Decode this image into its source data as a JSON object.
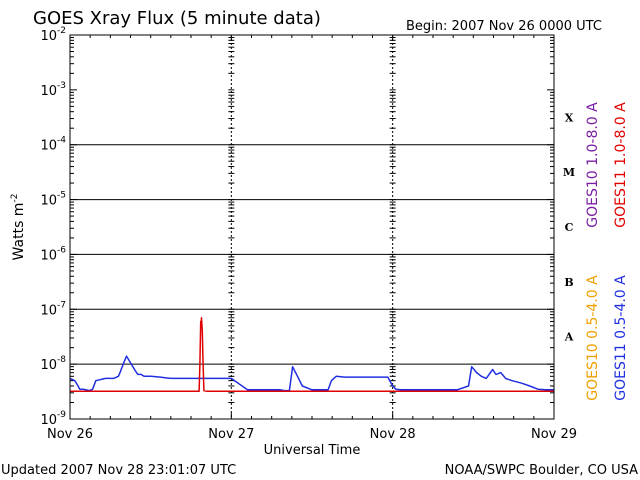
{
  "chart_data": {
    "type": "line",
    "title": "GOES Xray Flux (5 minute data)",
    "begin_label": "Begin:  2007 Nov 26 0000 UTC",
    "xlabel": "Universal Time",
    "ylabel": "Watts m",
    "ylabel_sup": "-2",
    "yscale": "log",
    "ylim": [
      1e-09,
      0.01
    ],
    "y_ticks": [
      {
        "base": "10",
        "exp": "-9",
        "value": 1e-09
      },
      {
        "base": "10",
        "exp": "-8",
        "value": 1e-08
      },
      {
        "base": "10",
        "exp": "-7",
        "value": 1e-07
      },
      {
        "base": "10",
        "exp": "-6",
        "value": 1e-06
      },
      {
        "base": "10",
        "exp": "-5",
        "value": 1e-05
      },
      {
        "base": "10",
        "exp": "-4",
        "value": 0.0001
      },
      {
        "base": "10",
        "exp": "-3",
        "value": 0.001
      },
      {
        "base": "10",
        "exp": "-2",
        "value": 0.01
      }
    ],
    "x_range_days": [
      0,
      3
    ],
    "x_ticks": [
      {
        "label": "Nov 26",
        "day": 0
      },
      {
        "label": "Nov 27",
        "day": 1
      },
      {
        "label": "Nov 28",
        "day": 2
      },
      {
        "label": "Nov 29",
        "day": 3
      }
    ],
    "flare_classes": [
      {
        "label": "A",
        "value": 1e-08
      },
      {
        "label": "B",
        "value": 1e-07
      },
      {
        "label": "C",
        "value": 1e-06
      },
      {
        "label": "M",
        "value": 1e-05
      },
      {
        "label": "X",
        "value": 0.0001
      }
    ],
    "grid": true,
    "legend_right": [
      {
        "name": "GOES10 1.0-8.0 A",
        "color": "#7a1fa2"
      },
      {
        "name": "GOES11 1.0-8.0 A",
        "color": "#e00000"
      },
      {
        "name": "GOES10 0.5-4.0 A",
        "color": "#f0a000"
      },
      {
        "name": "GOES11 0.5-4.0 A",
        "color": "#2030e0"
      }
    ],
    "series": [
      {
        "name": "GOES11 0.5-4.0 A",
        "color": "#2030e0",
        "x": [
          0.0,
          0.03,
          0.05,
          0.06,
          0.08,
          0.1,
          0.12,
          0.14,
          0.16,
          0.22,
          0.27,
          0.3,
          0.31,
          0.33,
          0.35,
          0.38,
          0.4,
          0.42,
          0.44,
          0.46,
          0.5,
          0.56,
          0.6,
          0.63,
          0.66,
          0.68,
          0.7,
          0.75,
          0.85,
          0.95,
          1.0,
          1.1,
          1.2,
          1.3,
          1.33,
          1.36,
          1.38,
          1.41,
          1.44,
          1.5,
          1.55,
          1.6,
          1.62,
          1.65,
          1.7,
          1.8,
          1.9,
          1.97,
          2.0,
          2.02,
          2.05,
          2.1,
          2.2,
          2.3,
          2.4,
          2.47,
          2.49,
          2.52,
          2.55,
          2.58,
          2.62,
          2.64,
          2.67,
          2.7,
          2.74,
          2.8,
          2.85,
          2.9,
          2.95,
          3.0
        ],
        "y": [
          5.5e-09,
          5e-09,
          4e-09,
          3.5e-09,
          3.5e-09,
          3.4e-09,
          3.3e-09,
          3.5e-09,
          5e-09,
          5.5e-09,
          5.5e-09,
          6e-09,
          7e-09,
          1e-08,
          1.4e-08,
          1e-08,
          8e-09,
          6.5e-09,
          6.5e-09,
          6e-09,
          6e-09,
          5.8e-09,
          5.6e-09,
          5.5e-09,
          5.5e-09,
          5.5e-09,
          5.5e-09,
          5.5e-09,
          5.5e-09,
          5.5e-09,
          5.5e-09,
          3.4e-09,
          3.4e-09,
          3.4e-09,
          3.3e-09,
          3.3e-09,
          9e-09,
          6e-09,
          4e-09,
          3.4e-09,
          3.4e-09,
          3.4e-09,
          5e-09,
          6e-09,
          5.8e-09,
          5.8e-09,
          5.8e-09,
          5.8e-09,
          4e-09,
          3.5e-09,
          3.4e-09,
          3.4e-09,
          3.4e-09,
          3.4e-09,
          3.4e-09,
          4e-09,
          9e-09,
          7e-09,
          6e-09,
          5.5e-09,
          8e-09,
          6.5e-09,
          7e-09,
          5.5e-09,
          5e-09,
          4.5e-09,
          4e-09,
          3.5e-09,
          3.4e-09,
          3.4e-09
        ]
      },
      {
        "name": "GOES11 1.0-8.0 A",
        "color": "#e00000",
        "x": [
          0.0,
          0.2,
          0.4,
          0.6,
          0.75,
          0.78,
          0.8,
          0.805,
          0.81,
          0.812,
          0.815,
          0.82,
          0.825,
          0.83,
          0.85,
          1.0,
          1.2,
          1.5,
          1.8,
          2.0,
          2.2,
          2.5,
          2.8,
          3.0
        ],
        "y": [
          3.2e-09,
          3.2e-09,
          3.2e-09,
          3.2e-09,
          3.2e-09,
          3.2e-09,
          3.2e-09,
          1e-08,
          6e-08,
          5e-08,
          7e-08,
          4e-08,
          1e-08,
          3.3e-09,
          3.2e-09,
          3.2e-09,
          3.2e-09,
          3.2e-09,
          3.2e-09,
          3.2e-09,
          3.2e-09,
          3.2e-09,
          3.2e-09,
          3.2e-09
        ]
      }
    ]
  },
  "footer": {
    "updated": "Updated 2007 Nov 28 23:01:07 UTC",
    "credit": "NOAA/SWPC Boulder, CO USA"
  }
}
